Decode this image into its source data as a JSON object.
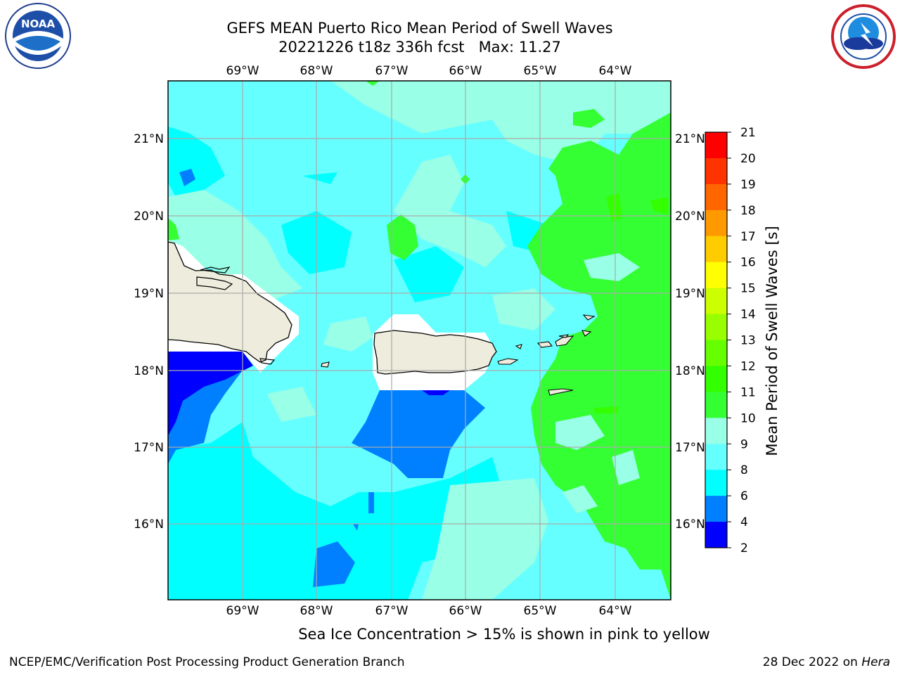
{
  "header": {
    "title_line1": "GEFS MEAN Puerto Rico Mean Period of Swell Waves",
    "title_line2": "20221226 t18z 336h fcst   Max: 11.27"
  },
  "logos": {
    "left": {
      "icon": "noaa-logo",
      "text": "NOAA",
      "ring_text": "NATIONAL OCEANIC AND ATMOSPHERIC ADMINISTRATION · U.S. DEPARTMENT OF COMMERCE"
    },
    "right": {
      "icon": "nws-logo",
      "ring_text": "NATIONAL WEATHER SERVICE"
    }
  },
  "map": {
    "lon_ticks": [
      "69°W",
      "68°W",
      "67°W",
      "66°W",
      "65°W",
      "64°W"
    ],
    "lat_ticks": [
      "21°N",
      "20°N",
      "19°N",
      "18°N",
      "17°N",
      "16°N"
    ],
    "land_color": "#eeecdc",
    "ocean_base_color": "#66ffff"
  },
  "colorbar": {
    "label": "Mean Period of Swell Waves [s]",
    "ticks": [
      "21",
      "20",
      "19",
      "18",
      "17",
      "16",
      "15",
      "14",
      "13",
      "12",
      "11",
      "10",
      "9",
      "8",
      "6",
      "4",
      "2"
    ],
    "colors": [
      "#ff0000",
      "#ff3300",
      "#ff6600",
      "#ff9900",
      "#ffcc00",
      "#ffff00",
      "#ccff00",
      "#99ff00",
      "#66ff00",
      "#33ff00",
      "#33ff33",
      "#99ffe6",
      "#66ffff",
      "#00ffff",
      "#0080ff",
      "#0000ff"
    ]
  },
  "caption": "Sea Ice Concentration > 15% is shown in pink to yellow",
  "footer": {
    "left": "NCEP/EMC/Verification Post Processing Product Generation Branch",
    "right_prefix": "28 Dec 2022 on ",
    "right_italic": "Hera"
  }
}
